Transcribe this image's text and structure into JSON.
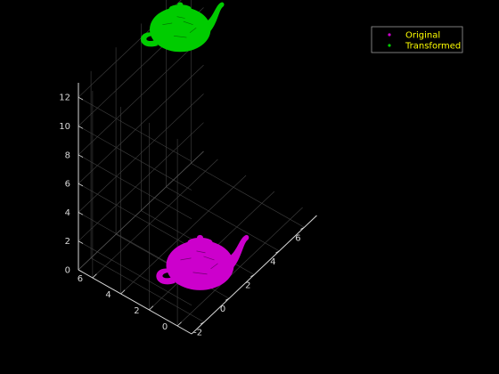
{
  "chart_data": {
    "type": "scatter",
    "subtype": "3d-point-cloud",
    "background": "#000000",
    "axes_color": "#d8d8d8",
    "grid": true,
    "legend_placement": "top-right",
    "legend_text_color": "#ffff00",
    "x_axis": {
      "range": [
        -3,
        7
      ],
      "ticks": [
        -2,
        0,
        2,
        4,
        6
      ],
      "label": ""
    },
    "y_axis": {
      "range": [
        -1,
        7
      ],
      "ticks": [
        0,
        2,
        4,
        6
      ],
      "label": ""
    },
    "z_axis": {
      "range": [
        0,
        13
      ],
      "ticks": [
        0,
        2,
        4,
        6,
        8,
        10,
        12
      ],
      "label": ""
    },
    "series": [
      {
        "name": "Original",
        "color": "#cc00cc",
        "marker": "point",
        "shape": "teapot",
        "center": [
          0.5,
          1.5,
          0.5
        ],
        "extent": [
          6,
          4,
          3
        ]
      },
      {
        "name": "Transformed",
        "color": "#00cc00",
        "marker": "point",
        "shape": "teapot",
        "center": [
          4,
          6,
          11.5
        ],
        "extent": [
          5,
          3.5,
          3
        ]
      }
    ]
  }
}
